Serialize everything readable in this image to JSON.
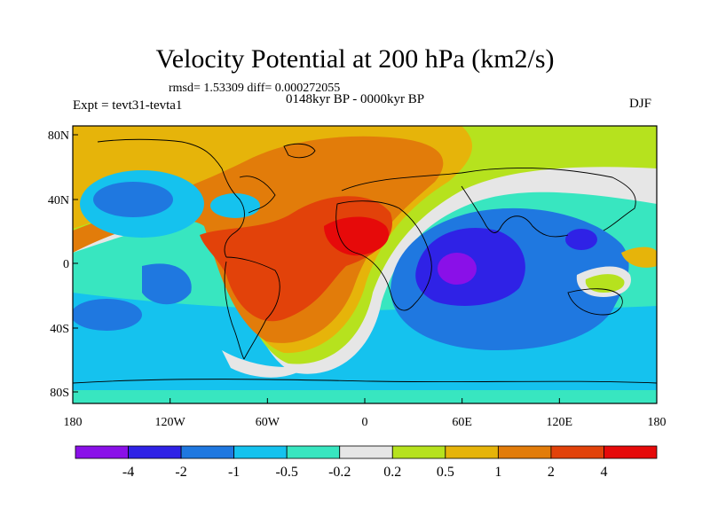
{
  "title": "Velocity Potential at 200 hPa (km2/s)",
  "stats": "rmsd= 1.53309 diff= 0.000272055",
  "experiment": "Expt = tevt31-tevta1",
  "period": "0148kyr BP - 0000kyr BP",
  "season": "DJF",
  "lat_ticks": [
    "80N",
    "40N",
    "0",
    "40S",
    "80S"
  ],
  "lon_ticks": [
    "180",
    "120W",
    "60W",
    "0",
    "60E",
    "120E",
    "180"
  ],
  "colorbar": {
    "labels": [
      "-4",
      "-2",
      "-1",
      "-0.5",
      "-0.2",
      "0.2",
      "0.5",
      "1",
      "2",
      "4"
    ],
    "colors": [
      "#8a10e8",
      "#2f22e6",
      "#1f78e0",
      "#15c2ee",
      "#38e6c0",
      "#e6e6e6",
      "#b6e21e",
      "#e6b40a",
      "#e27c0a",
      "#e2420a",
      "#e60a0a"
    ]
  }
}
